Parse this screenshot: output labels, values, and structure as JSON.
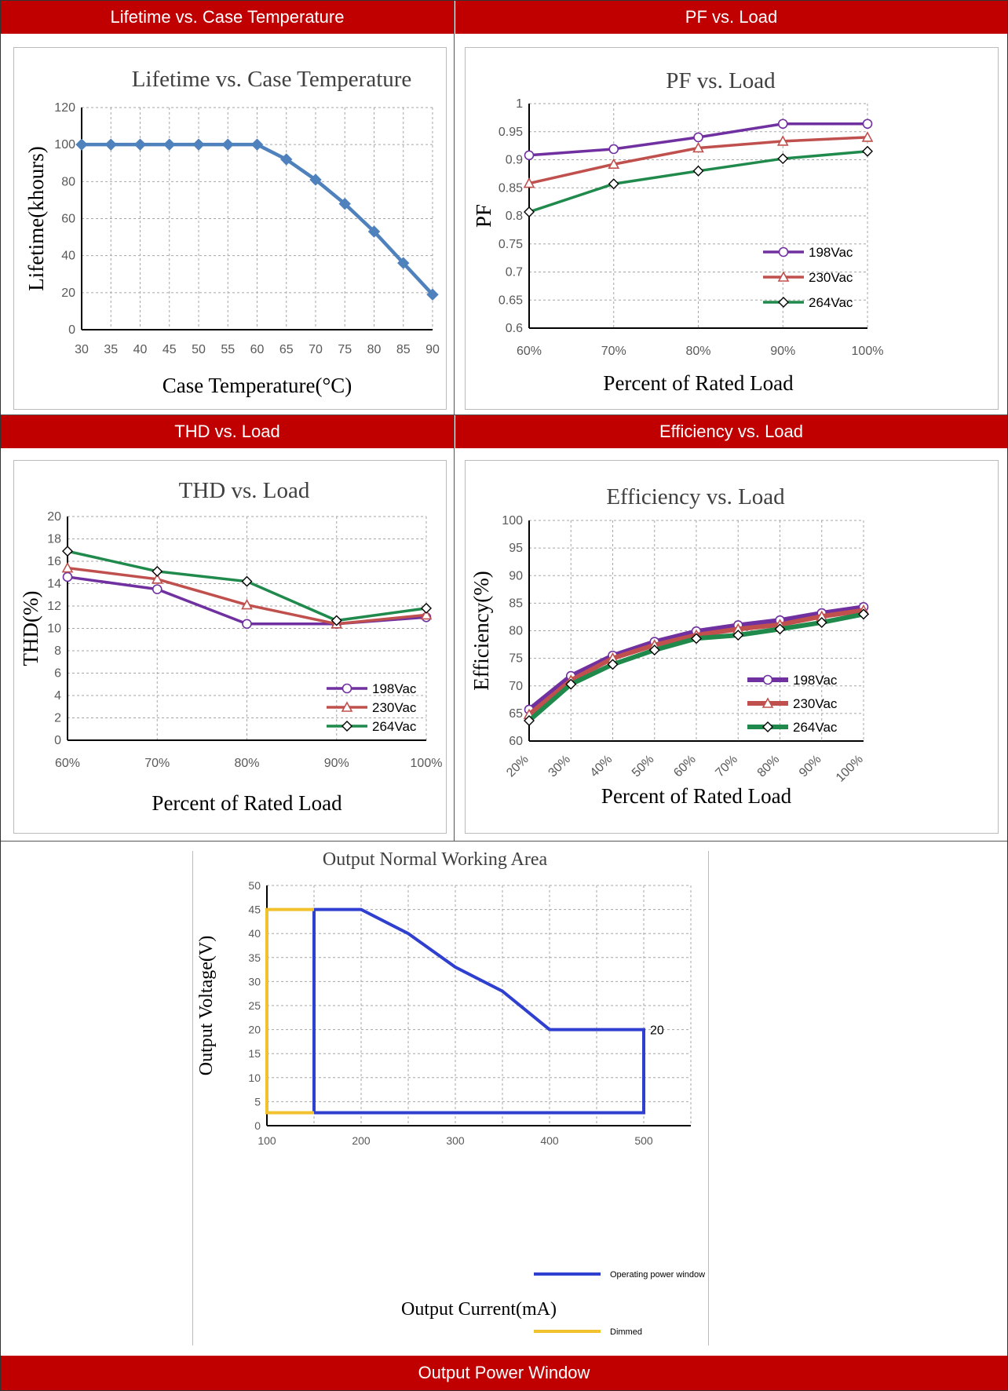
{
  "headers": {
    "lifetime": "Lifetime vs. Case Temperature",
    "pf": "PF vs. Load",
    "thd": "THD vs. Load",
    "efficiency": "Efficiency vs. Load",
    "window": "Output Power Window"
  },
  "colors": {
    "header_bg": "#c00000",
    "lifetime_line": "#4f81bd",
    "s198": "#7030a0",
    "s230": "#c0504d",
    "s264": "#1f8a4c",
    "operating": "#2f3fcf",
    "dimmed": "#f2c12e"
  },
  "chart_data": [
    {
      "id": "lifetime",
      "type": "line",
      "title": "Lifetime vs. Case Temperature",
      "xlabel": "Case Temperature(°C)",
      "ylabel": "Lifetime(khours)",
      "x": [
        30,
        35,
        40,
        45,
        50,
        55,
        60,
        65,
        70,
        75,
        80,
        85,
        90
      ],
      "xticks": [
        "30",
        "35",
        "40",
        "45",
        "50",
        "55",
        "60",
        "65",
        "70",
        "75",
        "80",
        "85",
        "90"
      ],
      "yticks": [
        "0",
        "20",
        "40",
        "60",
        "80",
        "100",
        "120"
      ],
      "ylim": [
        0,
        120
      ],
      "grid": true,
      "series": [
        {
          "values": [
            100,
            100,
            100,
            100,
            100,
            100,
            100,
            92,
            81,
            68,
            53,
            36,
            19
          ]
        }
      ]
    },
    {
      "id": "pf",
      "type": "line",
      "title": "PF vs. Load",
      "xlabel": "Percent of Rated Load",
      "ylabel": "PF",
      "categories": [
        "60%",
        "70%",
        "80%",
        "90%",
        "100%"
      ],
      "yticks": [
        "0.6",
        "0.65",
        "0.7",
        "0.75",
        "0.8",
        "0.85",
        "0.9",
        "0.95",
        "1"
      ],
      "ylim": [
        0.6,
        1
      ],
      "grid": true,
      "legend": "right",
      "series": [
        {
          "name": "198Vac",
          "values": [
            0.908,
            0.919,
            0.94,
            0.964,
            0.964
          ]
        },
        {
          "name": "230Vac",
          "values": [
            0.858,
            0.892,
            0.921,
            0.933,
            0.94
          ]
        },
        {
          "name": "264Vac",
          "values": [
            0.807,
            0.857,
            0.88,
            0.902,
            0.915
          ]
        }
      ]
    },
    {
      "id": "thd",
      "type": "line",
      "title": "THD vs. Load",
      "xlabel": "Percent of Rated Load",
      "ylabel": "THD(%)",
      "categories": [
        "60%",
        "70%",
        "80%",
        "90%",
        "100%"
      ],
      "yticks": [
        "0",
        "2",
        "4",
        "6",
        "8",
        "10",
        "12",
        "14",
        "16",
        "18",
        "20"
      ],
      "ylim": [
        0,
        20
      ],
      "grid": true,
      "legend": "bottom-right",
      "series": [
        {
          "name": "198Vac",
          "values": [
            14.6,
            13.5,
            10.4,
            10.4,
            11.0
          ]
        },
        {
          "name": "230Vac",
          "values": [
            15.4,
            14.4,
            12.1,
            10.4,
            11.2
          ]
        },
        {
          "name": "264Vac",
          "values": [
            16.9,
            15.1,
            14.2,
            10.7,
            11.8
          ]
        }
      ]
    },
    {
      "id": "efficiency",
      "type": "line",
      "title": "Efficiency vs. Load",
      "xlabel": "Percent of Rated Load",
      "ylabel": "Efficiency(%)",
      "categories": [
        "20%",
        "30%",
        "40%",
        "50%",
        "60%",
        "70%",
        "80%",
        "90%",
        "100%"
      ],
      "yticks": [
        "60",
        "65",
        "70",
        "75",
        "80",
        "85",
        "90",
        "95",
        "100"
      ],
      "ylim": [
        60,
        100
      ],
      "grid": true,
      "legend": "bottom-right",
      "series": [
        {
          "name": "198Vac",
          "values": [
            65.7,
            71.8,
            75.5,
            78.0,
            79.9,
            81.0,
            81.9,
            83.2,
            84.3
          ]
        },
        {
          "name": "230Vac",
          "values": [
            64.8,
            71.0,
            75.0,
            77.4,
            79.2,
            80.3,
            81.1,
            82.6,
            83.7
          ]
        },
        {
          "name": "264Vac",
          "values": [
            63.7,
            70.3,
            73.9,
            76.5,
            78.6,
            79.2,
            80.3,
            81.5,
            83.0
          ]
        }
      ]
    },
    {
      "id": "window",
      "type": "line",
      "title": "Output Normal Working Area",
      "xlabel": "Output Current(mA)",
      "ylabel": "Output Voltage(V)",
      "xticks": [
        "100",
        "200",
        "300",
        "400",
        "500"
      ],
      "yticks": [
        "0",
        "5",
        "10",
        "15",
        "20",
        "25",
        "30",
        "35",
        "40",
        "45",
        "50"
      ],
      "xlim": [
        100,
        550
      ],
      "ylim": [
        0,
        50
      ],
      "grid": true,
      "legend": "bottom-right",
      "annotation": "20",
      "series": [
        {
          "name": "Operating power window",
          "points": [
            [
              150,
              2.7
            ],
            [
              150,
              45
            ],
            [
              200,
              45
            ],
            [
              250,
              40
            ],
            [
              300,
              33
            ],
            [
              350,
              28
            ],
            [
              400,
              20
            ],
            [
              500,
              20
            ],
            [
              500,
              2.7
            ],
            [
              150,
              2.7
            ]
          ]
        },
        {
          "name": "Dimmed",
          "points": [
            [
              150,
              45
            ],
            [
              100,
              45
            ],
            [
              100,
              2.7
            ],
            [
              150,
              2.7
            ]
          ]
        }
      ]
    }
  ]
}
